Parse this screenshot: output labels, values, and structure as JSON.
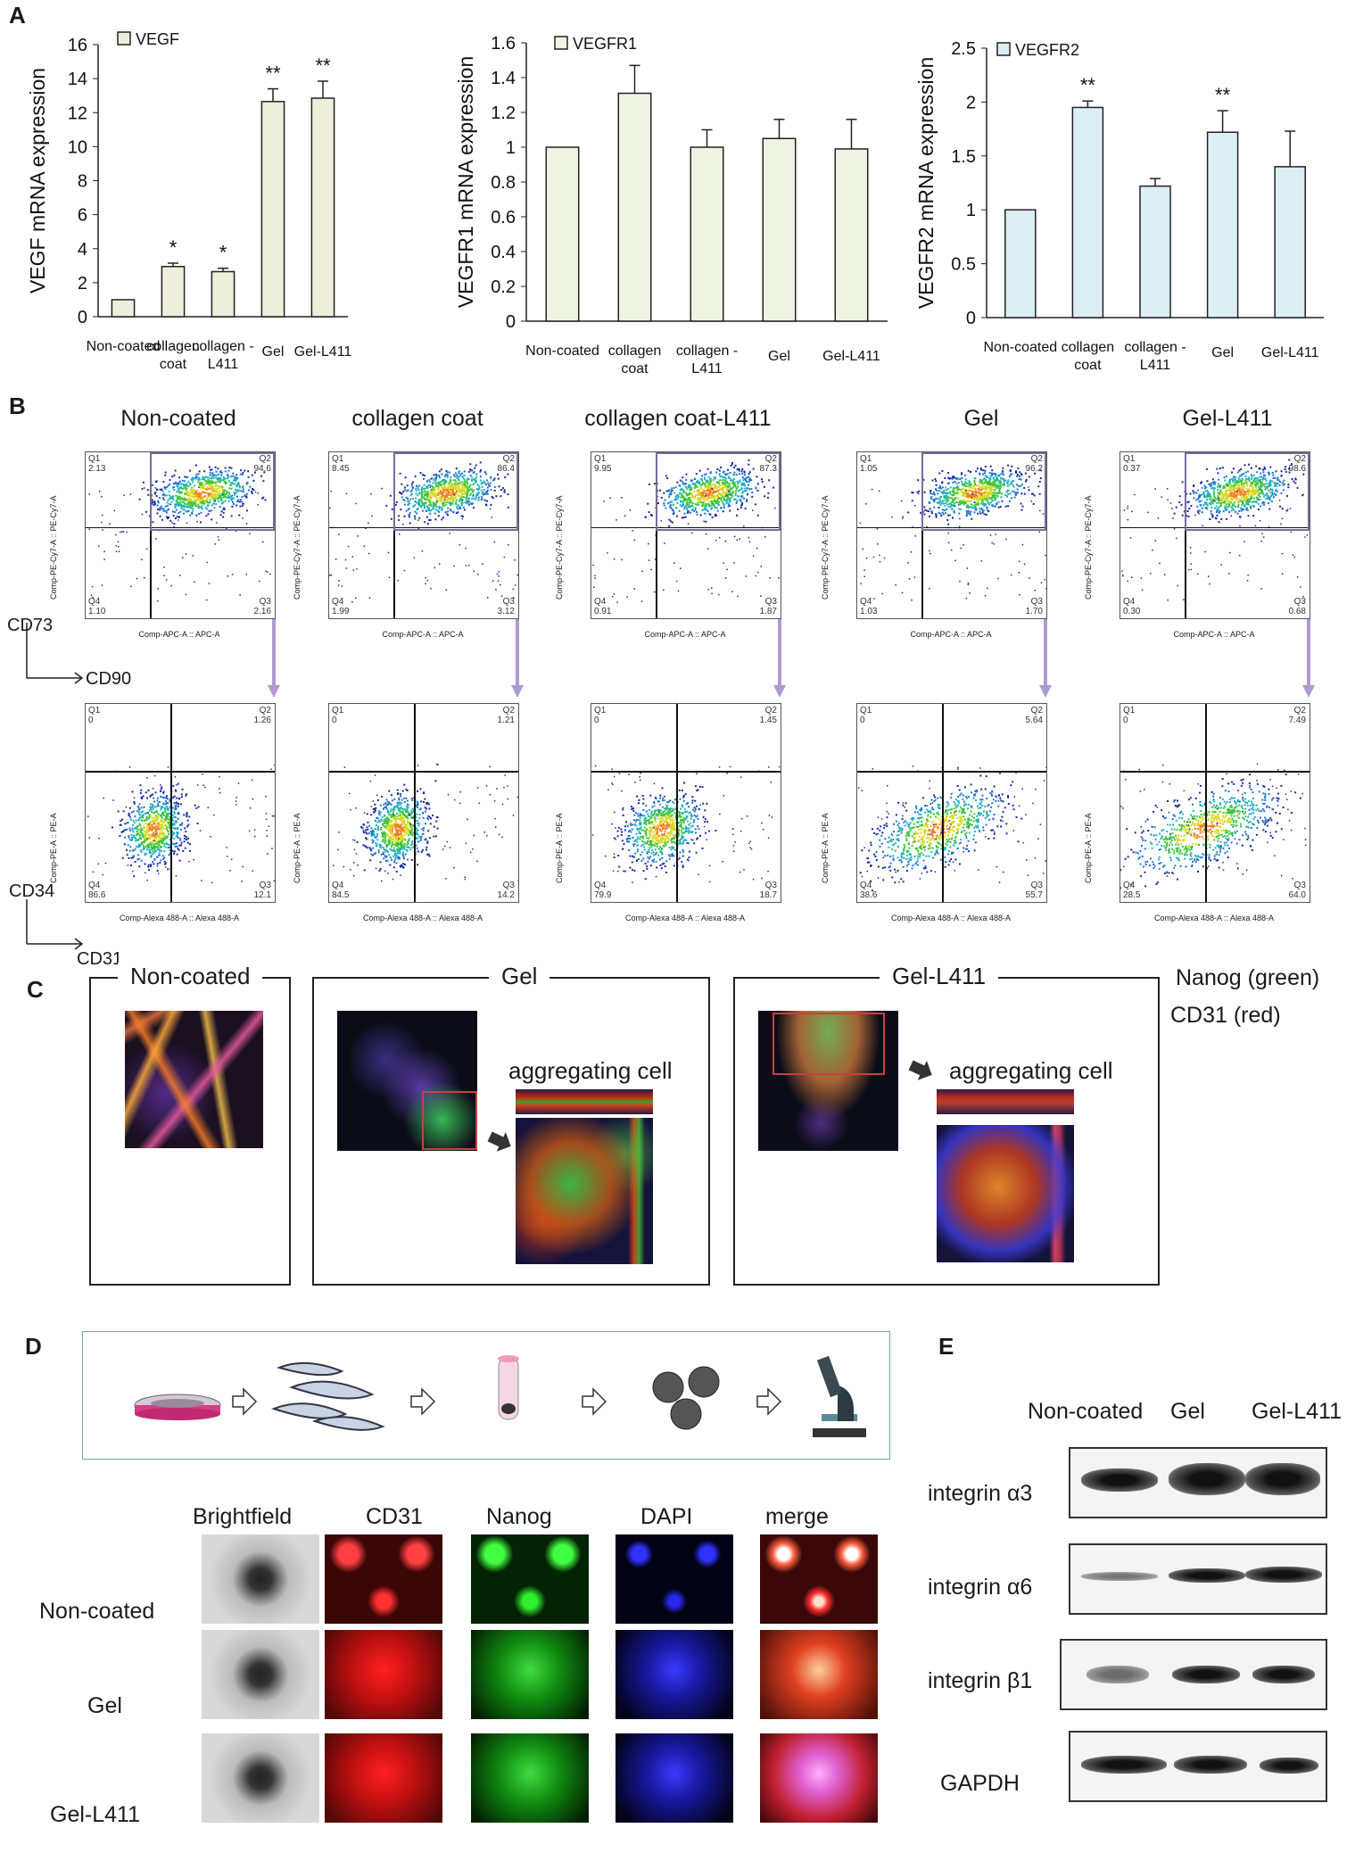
{
  "panels": {
    "a": "A",
    "b": "B",
    "c": "C",
    "d": "D",
    "e": "E"
  },
  "chart_data": [
    {
      "type": "bar",
      "legend": "VEGF",
      "ylabel": "VEGF mRNA expression",
      "categories": [
        "Non-coated",
        "collagen coat",
        "collagen - L411",
        "Gel",
        "Gel-L411"
      ],
      "values": [
        1.0,
        2.95,
        2.65,
        12.65,
        12.85
      ],
      "errors": [
        0,
        0.2,
        0.2,
        0.75,
        1.0
      ],
      "significance": [
        "",
        "*",
        "*",
        "**",
        "**"
      ],
      "ylim": [
        0,
        16
      ],
      "yticks": [
        0,
        2,
        4,
        6,
        8,
        10,
        12,
        14,
        16
      ],
      "color": "#eeeedd"
    },
    {
      "type": "bar",
      "legend": "VEGFR1",
      "ylabel": "VEGFR1 mRNA expression",
      "categories": [
        "Non-coated",
        "collagen coat",
        "collagen - L411",
        "Gel",
        "Gel-L411"
      ],
      "values": [
        1.0,
        1.31,
        1.0,
        1.05,
        0.99
      ],
      "errors": [
        0,
        0.16,
        0.1,
        0.11,
        0.17
      ],
      "significance": [
        "",
        "",
        "",
        "",
        ""
      ],
      "ylim": [
        0,
        1.6
      ],
      "yticks": [
        "0",
        "0.2",
        "0.4",
        "0.6",
        "0.8",
        "1",
        "1.2",
        "1.4",
        "1.6"
      ],
      "color": "#eff3e3"
    },
    {
      "type": "bar",
      "legend": "VEGFR2",
      "ylabel": "VEGFR2 mRNA expression",
      "categories": [
        "Non-coated",
        "collagen coat",
        "collagen - L411",
        "Gel",
        "Gel-L411"
      ],
      "values": [
        1.0,
        1.95,
        1.22,
        1.72,
        1.4
      ],
      "errors": [
        0,
        0.06,
        0.07,
        0.2,
        0.33
      ],
      "significance": [
        "",
        "**",
        "",
        "**",
        ""
      ],
      "ylim": [
        0,
        2.5
      ],
      "yticks": [
        "0",
        "0.5",
        "1",
        "1.5",
        "2",
        "2.5"
      ],
      "color": "#ddeef5"
    }
  ],
  "flow": {
    "conditions": [
      "Non-coated",
      "collagen coat",
      "collagen coat-L411",
      "Gel",
      "Gel-L411"
    ],
    "top_axes": {
      "y": "CD73",
      "x": "CD90"
    },
    "bottom_axes": {
      "y": "CD34",
      "x": "CD31"
    },
    "top_ylabel": "Comp-PE-Cy7-A :: PE-Cy7-A",
    "top_xlabel": "Comp-APC-A :: APC-A",
    "bottom_ylabel": "Comp-PE-A :: PE-A",
    "bottom_xlabel": "Comp-Alexa 488-A :: Alexa 488-A",
    "top_quadrants": [
      {
        "q1": "2.13",
        "q2": "94.6",
        "q3": "2.16",
        "q4": "1.10"
      },
      {
        "q1": "8.45",
        "q2": "86.4",
        "q3": "3.12",
        "q4": "1.99"
      },
      {
        "q1": "9.95",
        "q2": "87.3",
        "q3": "1.87",
        "q4": "0.91"
      },
      {
        "q1": "1.05",
        "q2": "96.2",
        "q3": "1.70",
        "q4": "1.03"
      },
      {
        "q1": "0.37",
        "q2": "98.6",
        "q3": "0.68",
        "q4": "0.30"
      }
    ],
    "bottom_quadrants": [
      {
        "q1": "0",
        "q2": "1.26",
        "q3": "12.1",
        "q4": "86.6"
      },
      {
        "q1": "0",
        "q2": "1.21",
        "q3": "14.2",
        "q4": "84.5"
      },
      {
        "q1": "0",
        "q2": "1.45",
        "q3": "18.7",
        "q4": "79.9"
      },
      {
        "q1": "0",
        "q2": "5.64",
        "q3": "55.7",
        "q4": "38.6"
      },
      {
        "q1": "0",
        "q2": "7.49",
        "q3": "64.0",
        "q4": "28.5"
      }
    ],
    "q_names": {
      "q1": "Q1",
      "q2": "Q2",
      "q3": "Q3",
      "q4": "Q4"
    }
  },
  "panel_c": {
    "boxes": [
      "Non-coated",
      "Gel",
      "Gel-L411"
    ],
    "aggregating": "aggregating cell",
    "legend_green": "Nanog (green)",
    "legend_red": "CD31 (red)",
    "green_color": "#22aa22",
    "red_color": "#dd1111"
  },
  "panel_d": {
    "columns": [
      "Brightfield",
      "CD31",
      "Nanog",
      "DAPI",
      "merge"
    ],
    "rows": [
      "Non-coated",
      "Gel",
      "Gel-L411"
    ],
    "workflow_icons": [
      "culture-dish-icon",
      "cells-icon",
      "tube-icon",
      "spheroid-icon",
      "microscope-icon"
    ]
  },
  "panel_e": {
    "columns": [
      "Non-coated",
      "Gel",
      "Gel-L411"
    ],
    "rows": [
      "integrin α3",
      "integrin α6",
      "integrin β1",
      "GAPDH"
    ]
  }
}
